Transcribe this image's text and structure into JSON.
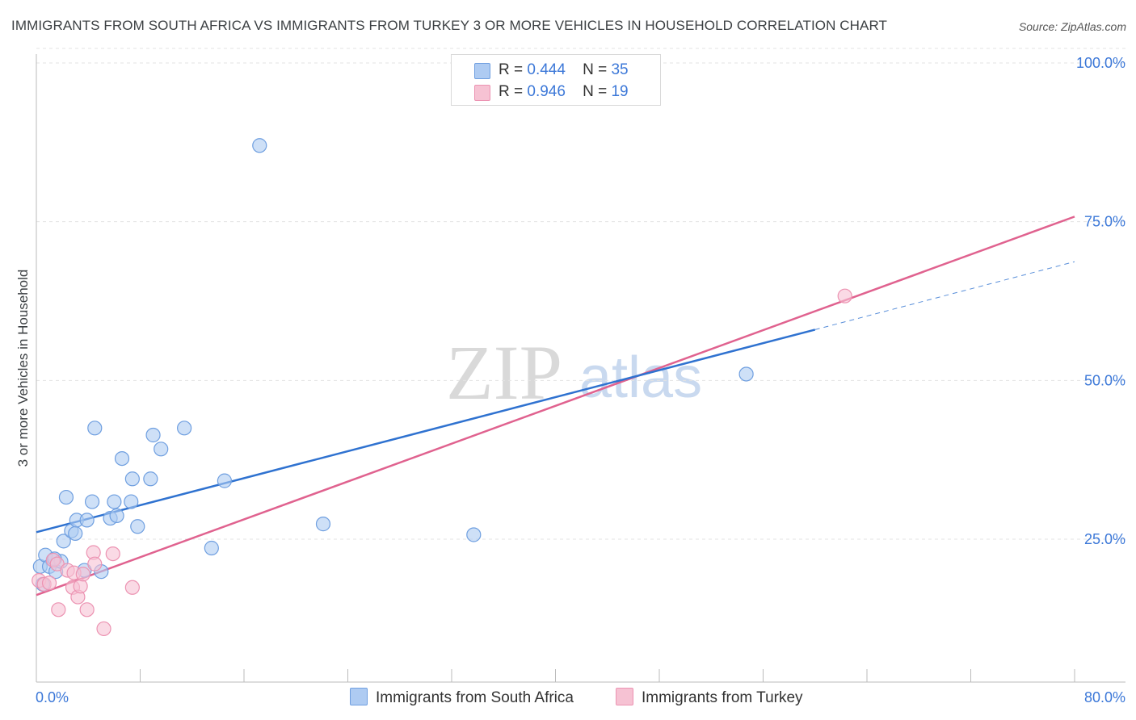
{
  "title": "IMMIGRANTS FROM SOUTH AFRICA VS IMMIGRANTS FROM TURKEY 3 OR MORE VEHICLES IN HOUSEHOLD CORRELATION CHART",
  "source": "Source: ZipAtlas.com",
  "watermark": {
    "zip": "ZIP",
    "atlas": "atlas"
  },
  "legend": {
    "r_label": "R =",
    "n_label": "N =",
    "rows": [
      {
        "r": "0.444",
        "n": "35"
      },
      {
        "r": "0.946",
        "n": "19"
      }
    ]
  },
  "colors": {
    "blue_fill": "#aecbf2",
    "blue_stroke": "#6f9fe0",
    "blue_line": "#2f72d0",
    "pink_fill": "#f6c2d3",
    "pink_stroke": "#ec93b2",
    "pink_line": "#e0628f",
    "tick_color": "#3c78d8"
  },
  "chart_data": {
    "type": "scatter",
    "title": "IMMIGRANTS FROM SOUTH AFRICA VS IMMIGRANTS FROM TURKEY 3 OR MORE VEHICLES IN HOUSEHOLD CORRELATION CHART",
    "xlabel": "",
    "ylabel": "3 or more Vehicles in Household",
    "xlim": [
      0,
      80
    ],
    "ylim": [
      2.5,
      100
    ],
    "x_tick_labels": [
      "0.0%",
      "80.0%"
    ],
    "y_tick_values": [
      25,
      50,
      75,
      100
    ],
    "y_tick_labels": [
      "25.0%",
      "50.0%",
      "75.0%",
      "100.0%"
    ],
    "grid": true,
    "legend_position": "top-center",
    "series": [
      {
        "name": "Immigrants from South Africa",
        "color": "#aecbf2",
        "r": 0.444,
        "n": 35,
        "points": [
          [
            0.3,
            20.7
          ],
          [
            0.7,
            22.5
          ],
          [
            1.0,
            20.7
          ],
          [
            1.3,
            21.7
          ],
          [
            1.5,
            19.9
          ],
          [
            1.9,
            21.5
          ],
          [
            2.1,
            24.7
          ],
          [
            2.3,
            31.6
          ],
          [
            2.7,
            26.3
          ],
          [
            3.0,
            25.9
          ],
          [
            3.1,
            28.0
          ],
          [
            3.9,
            28.0
          ],
          [
            3.7,
            20.1
          ],
          [
            4.3,
            30.9
          ],
          [
            4.5,
            42.5
          ],
          [
            5.0,
            19.9
          ],
          [
            5.7,
            28.3
          ],
          [
            6.0,
            30.9
          ],
          [
            6.2,
            28.7
          ],
          [
            6.6,
            37.7
          ],
          [
            7.4,
            34.5
          ],
          [
            7.3,
            30.9
          ],
          [
            7.8,
            27.0
          ],
          [
            8.8,
            34.5
          ],
          [
            9.0,
            41.4
          ],
          [
            9.6,
            39.2
          ],
          [
            11.4,
            42.5
          ],
          [
            13.5,
            23.6
          ],
          [
            14.5,
            34.2
          ],
          [
            17.2,
            87.0
          ],
          [
            22.1,
            27.4
          ],
          [
            33.7,
            25.7
          ],
          [
            54.7,
            51.0
          ],
          [
            0.5,
            17.9
          ],
          [
            1.4,
            21.9
          ]
        ],
        "trend": {
          "x0": 0,
          "y0": 26.1,
          "x1": 60,
          "y1": 58.0,
          "dash_x1": 80,
          "dash_y1": 68.7
        }
      },
      {
        "name": "Immigrants from Turkey",
        "color": "#f6c2d3",
        "r": 0.946,
        "n": 19,
        "points": [
          [
            0.2,
            18.5
          ],
          [
            0.6,
            17.9
          ],
          [
            1.0,
            18.1
          ],
          [
            1.3,
            21.7
          ],
          [
            1.6,
            21.1
          ],
          [
            1.7,
            13.9
          ],
          [
            2.4,
            20.1
          ],
          [
            2.8,
            17.4
          ],
          [
            2.9,
            19.7
          ],
          [
            3.2,
            15.9
          ],
          [
            3.4,
            17.6
          ],
          [
            3.6,
            19.5
          ],
          [
            3.9,
            13.9
          ],
          [
            4.4,
            22.9
          ],
          [
            4.5,
            21.1
          ],
          [
            5.2,
            10.9
          ],
          [
            5.9,
            22.7
          ],
          [
            7.4,
            17.4
          ],
          [
            62.3,
            63.3
          ]
        ],
        "trend": {
          "x0": 0,
          "y0": 16.2,
          "x1": 80,
          "y1": 75.8
        }
      }
    ]
  }
}
